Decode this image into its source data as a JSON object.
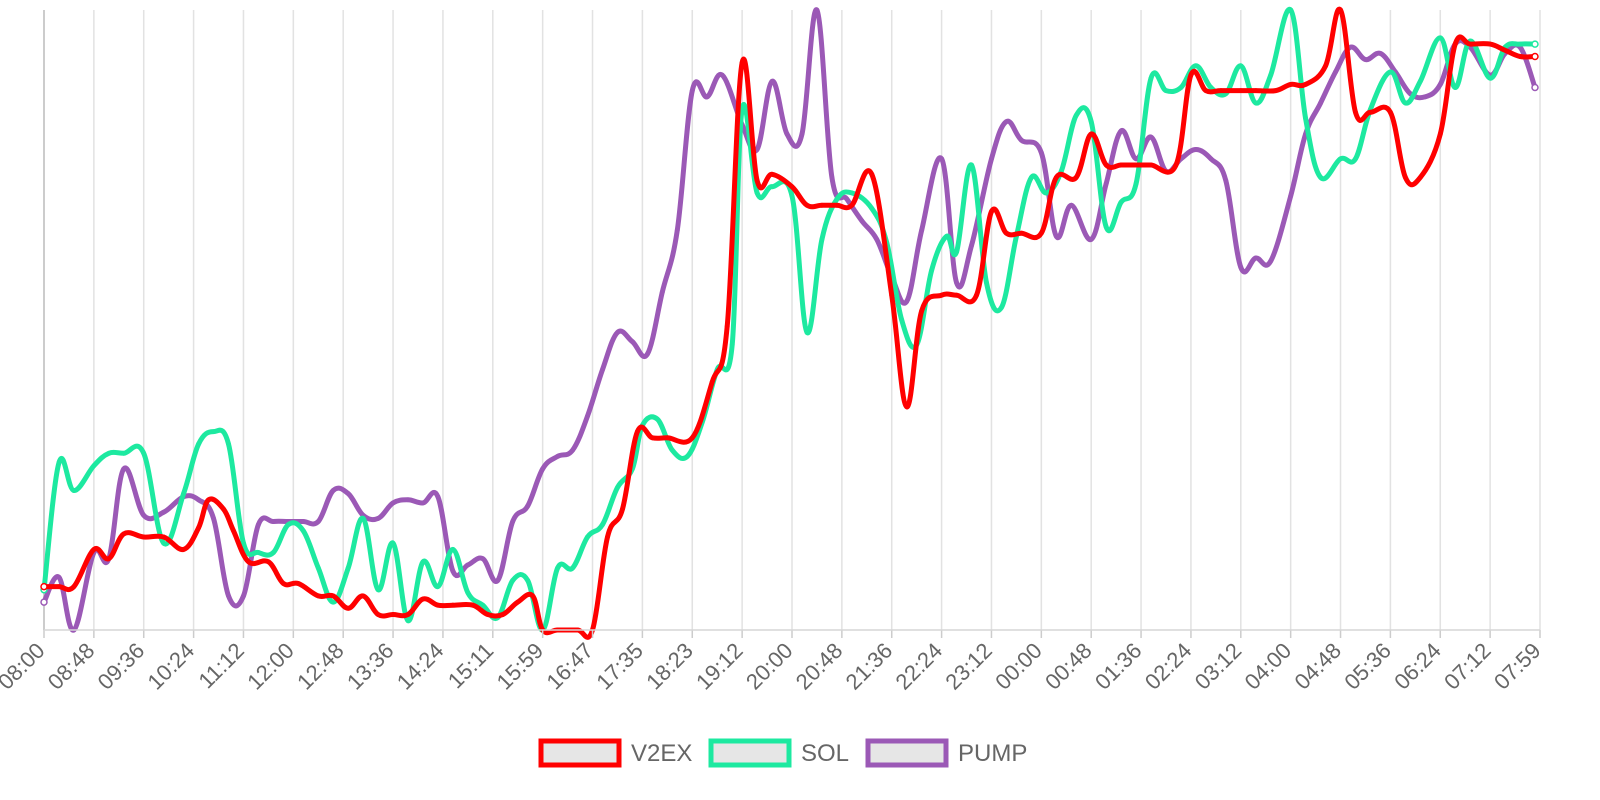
{
  "chart_data": {
    "type": "line",
    "title": "",
    "xlabel": "",
    "ylabel": "",
    "x_tick_labels": [
      "08:00",
      "08:48",
      "09:36",
      "10:24",
      "11:12",
      "12:00",
      "12:48",
      "13:36",
      "14:24",
      "15:11",
      "15:59",
      "16:47",
      "17:35",
      "18:23",
      "19:12",
      "20:00",
      "20:48",
      "21:36",
      "22:24",
      "23:12",
      "00:00",
      "00:48",
      "01:36",
      "02:24",
      "03:12",
      "04:00",
      "04:48",
      "05:36",
      "06:24",
      "07:12",
      "07:59"
    ],
    "y_axis_visible": false,
    "grid": "vertical",
    "legend_position": "bottom",
    "series": [
      {
        "name": "V2EX",
        "color": "#ff0000",
        "points": [
          [
            0,
            7.0
          ],
          [
            0.3,
            7.0
          ],
          [
            0.6,
            7.0
          ],
          [
            1.0,
            13.0
          ],
          [
            1.3,
            11.5
          ],
          [
            1.6,
            15.5
          ],
          [
            2.0,
            15.0
          ],
          [
            2.4,
            15.0
          ],
          [
            2.8,
            13.0
          ],
          [
            3.1,
            16.5
          ],
          [
            3.3,
            21.0
          ],
          [
            3.6,
            19.5
          ],
          [
            3.8,
            16.0
          ],
          [
            4.1,
            11.0
          ],
          [
            4.5,
            11.0
          ],
          [
            4.8,
            7.5
          ],
          [
            5.1,
            7.5
          ],
          [
            5.5,
            5.5
          ],
          [
            5.8,
            5.5
          ],
          [
            6.1,
            3.5
          ],
          [
            6.4,
            5.5
          ],
          [
            6.7,
            2.5
          ],
          [
            7.0,
            2.5
          ],
          [
            7.3,
            2.5
          ],
          [
            7.6,
            5.0
          ],
          [
            7.9,
            4.0
          ],
          [
            8.2,
            4.0
          ],
          [
            8.6,
            4.0
          ],
          [
            8.9,
            2.5
          ],
          [
            9.2,
            2.5
          ],
          [
            9.5,
            4.5
          ],
          [
            9.8,
            5.5
          ],
          [
            10.0,
            0.0
          ],
          [
            10.3,
            0.0
          ],
          [
            10.7,
            0.0
          ],
          [
            11.0,
            0.0
          ],
          [
            11.3,
            15.0
          ],
          [
            11.6,
            19.5
          ],
          [
            11.9,
            32.0
          ],
          [
            12.2,
            31.0
          ],
          [
            12.5,
            31.0
          ],
          [
            13.0,
            31.0
          ],
          [
            13.4,
            40.0
          ],
          [
            13.7,
            49.0
          ],
          [
            14.0,
            91.5
          ],
          [
            14.3,
            72.5
          ],
          [
            14.6,
            73.5
          ],
          [
            15.0,
            71.5
          ],
          [
            15.3,
            68.5
          ],
          [
            15.6,
            68.5
          ],
          [
            15.9,
            68.5
          ],
          [
            16.2,
            68.5
          ],
          [
            16.6,
            73.5
          ],
          [
            17.0,
            54.0
          ],
          [
            17.3,
            36.0
          ],
          [
            17.6,
            51.5
          ],
          [
            18.0,
            54.0
          ],
          [
            18.3,
            54.0
          ],
          [
            18.7,
            54.0
          ],
          [
            19.0,
            67.5
          ],
          [
            19.3,
            64.0
          ],
          [
            19.6,
            64.0
          ],
          [
            20.0,
            64.0
          ],
          [
            20.3,
            73.0
          ],
          [
            20.7,
            73.0
          ],
          [
            21.0,
            80.0
          ],
          [
            21.3,
            75.0
          ],
          [
            21.6,
            75.0
          ],
          [
            21.9,
            75.0
          ],
          [
            22.2,
            75.0
          ],
          [
            22.7,
            75.0
          ],
          [
            23.0,
            89.5
          ],
          [
            23.3,
            87.0
          ],
          [
            23.6,
            87.0
          ],
          [
            24.0,
            87.0
          ],
          [
            24.3,
            87.0
          ],
          [
            24.7,
            87.0
          ],
          [
            25.0,
            88.0
          ],
          [
            25.3,
            88.0
          ],
          [
            25.7,
            91.0
          ],
          [
            26.0,
            100.0
          ],
          [
            26.3,
            83.5
          ],
          [
            26.6,
            83.5
          ],
          [
            27.0,
            83.5
          ],
          [
            27.3,
            73.0
          ],
          [
            27.6,
            73.0
          ],
          [
            28.0,
            80.0
          ],
          [
            28.3,
            94.5
          ],
          [
            28.6,
            94.5
          ],
          [
            29.0,
            94.5
          ],
          [
            29.3,
            93.5
          ],
          [
            29.6,
            92.5
          ],
          [
            29.9,
            92.5
          ]
        ]
      },
      {
        "name": "SOL",
        "color": "#1de9a0",
        "points": [
          [
            0,
            6.5
          ],
          [
            0.3,
            27.0
          ],
          [
            0.6,
            22.5
          ],
          [
            1.0,
            26.5
          ],
          [
            1.3,
            28.5
          ],
          [
            1.6,
            28.5
          ],
          [
            2.0,
            28.5
          ],
          [
            2.4,
            14.0
          ],
          [
            2.8,
            22.0
          ],
          [
            3.1,
            30.0
          ],
          [
            3.4,
            32.0
          ],
          [
            3.7,
            30.0
          ],
          [
            4.0,
            14.0
          ],
          [
            4.3,
            12.5
          ],
          [
            4.6,
            12.5
          ],
          [
            4.9,
            17.0
          ],
          [
            5.2,
            16.0
          ],
          [
            5.5,
            10.0
          ],
          [
            5.8,
            4.5
          ],
          [
            6.1,
            10.0
          ],
          [
            6.4,
            18.0
          ],
          [
            6.7,
            6.5
          ],
          [
            7.0,
            14.0
          ],
          [
            7.3,
            1.5
          ],
          [
            7.6,
            11.0
          ],
          [
            7.9,
            7.0
          ],
          [
            8.2,
            13.0
          ],
          [
            8.5,
            6.0
          ],
          [
            8.8,
            4.0
          ],
          [
            9.1,
            2.0
          ],
          [
            9.4,
            8.0
          ],
          [
            9.7,
            8.0
          ],
          [
            10.0,
            0.0
          ],
          [
            10.3,
            10.0
          ],
          [
            10.6,
            10.0
          ],
          [
            10.9,
            15.0
          ],
          [
            11.2,
            17.0
          ],
          [
            11.5,
            23.0
          ],
          [
            11.8,
            26.0
          ],
          [
            12.0,
            33.0
          ],
          [
            12.3,
            34.0
          ],
          [
            12.6,
            29.0
          ],
          [
            12.9,
            28.0
          ],
          [
            13.2,
            33.5
          ],
          [
            13.5,
            42.0
          ],
          [
            13.8,
            46.0
          ],
          [
            14.0,
            84.0
          ],
          [
            14.3,
            70.5
          ],
          [
            14.6,
            71.5
          ],
          [
            15.0,
            70.0
          ],
          [
            15.3,
            48.0
          ],
          [
            15.6,
            63.0
          ],
          [
            15.9,
            69.5
          ],
          [
            16.2,
            70.5
          ],
          [
            16.6,
            68.0
          ],
          [
            16.9,
            62.5
          ],
          [
            17.2,
            50.0
          ],
          [
            17.5,
            46.0
          ],
          [
            17.8,
            58.0
          ],
          [
            18.1,
            63.5
          ],
          [
            18.3,
            61.0
          ],
          [
            18.6,
            75.0
          ],
          [
            18.9,
            56.0
          ],
          [
            19.2,
            52.0
          ],
          [
            19.5,
            63.5
          ],
          [
            19.8,
            73.0
          ],
          [
            20.1,
            70.5
          ],
          [
            20.4,
            74.0
          ],
          [
            20.7,
            83.0
          ],
          [
            21.0,
            82.0
          ],
          [
            21.3,
            65.0
          ],
          [
            21.6,
            69.0
          ],
          [
            21.9,
            72.0
          ],
          [
            22.2,
            89.0
          ],
          [
            22.5,
            87.0
          ],
          [
            22.8,
            87.5
          ],
          [
            23.1,
            91.0
          ],
          [
            23.4,
            87.5
          ],
          [
            23.7,
            86.5
          ],
          [
            24.0,
            91.0
          ],
          [
            24.3,
            85.0
          ],
          [
            24.6,
            89.5
          ],
          [
            25.0,
            100.0
          ],
          [
            25.3,
            82.5
          ],
          [
            25.6,
            73.0
          ],
          [
            26.0,
            76.0
          ],
          [
            26.3,
            76.0
          ],
          [
            26.6,
            84.0
          ],
          [
            27.0,
            90.0
          ],
          [
            27.3,
            85.0
          ],
          [
            27.6,
            88.5
          ],
          [
            28.0,
            95.5
          ],
          [
            28.3,
            87.5
          ],
          [
            28.6,
            95.0
          ],
          [
            29.0,
            89.0
          ],
          [
            29.3,
            94.0
          ],
          [
            29.6,
            94.5
          ],
          [
            29.9,
            94.5
          ]
        ]
      },
      {
        "name": "PUMP",
        "color": "#9b59b6",
        "points": [
          [
            0,
            4.5
          ],
          [
            0.3,
            8.5
          ],
          [
            0.6,
            0.0
          ],
          [
            1.0,
            12.5
          ],
          [
            1.3,
            11.5
          ],
          [
            1.6,
            26.0
          ],
          [
            2.0,
            18.5
          ],
          [
            2.4,
            19.0
          ],
          [
            2.8,
            21.5
          ],
          [
            3.1,
            21.0
          ],
          [
            3.4,
            18.0
          ],
          [
            3.7,
            5.5
          ],
          [
            4.0,
            5.5
          ],
          [
            4.3,
            17.0
          ],
          [
            4.6,
            17.5
          ],
          [
            4.9,
            17.5
          ],
          [
            5.2,
            17.5
          ],
          [
            5.5,
            17.5
          ],
          [
            5.8,
            22.5
          ],
          [
            6.1,
            22.0
          ],
          [
            6.4,
            18.5
          ],
          [
            6.7,
            18.0
          ],
          [
            7.0,
            20.5
          ],
          [
            7.3,
            21.0
          ],
          [
            7.6,
            20.5
          ],
          [
            7.9,
            21.5
          ],
          [
            8.2,
            9.5
          ],
          [
            8.5,
            10.5
          ],
          [
            8.8,
            11.5
          ],
          [
            9.1,
            8.0
          ],
          [
            9.4,
            17.5
          ],
          [
            9.7,
            20.0
          ],
          [
            10.0,
            26.0
          ],
          [
            10.3,
            28.0
          ],
          [
            10.6,
            29.0
          ],
          [
            10.9,
            34.5
          ],
          [
            11.2,
            42.0
          ],
          [
            11.5,
            48.0
          ],
          [
            11.8,
            46.5
          ],
          [
            12.1,
            44.5
          ],
          [
            12.4,
            54.5
          ],
          [
            12.7,
            64.5
          ],
          [
            13.0,
            87.0
          ],
          [
            13.3,
            86.0
          ],
          [
            13.6,
            89.5
          ],
          [
            14.0,
            81.5
          ],
          [
            14.3,
            77.5
          ],
          [
            14.6,
            88.5
          ],
          [
            14.9,
            80.0
          ],
          [
            15.2,
            80.0
          ],
          [
            15.5,
            100.0
          ],
          [
            15.8,
            73.0
          ],
          [
            16.1,
            69.5
          ],
          [
            16.4,
            66.0
          ],
          [
            16.7,
            63.0
          ],
          [
            17.0,
            57.0
          ],
          [
            17.3,
            53.0
          ],
          [
            17.6,
            64.5
          ],
          [
            18.0,
            76.0
          ],
          [
            18.3,
            56.0
          ],
          [
            18.6,
            62.0
          ],
          [
            19.0,
            76.0
          ],
          [
            19.3,
            82.0
          ],
          [
            19.6,
            79.0
          ],
          [
            20.0,
            77.0
          ],
          [
            20.3,
            63.5
          ],
          [
            20.6,
            68.5
          ],
          [
            21.0,
            63.0
          ],
          [
            21.3,
            72.0
          ],
          [
            21.6,
            80.5
          ],
          [
            21.9,
            76.0
          ],
          [
            22.2,
            79.5
          ],
          [
            22.5,
            74.0
          ],
          [
            22.8,
            76.0
          ],
          [
            23.1,
            77.5
          ],
          [
            23.4,
            76.0
          ],
          [
            23.7,
            72.5
          ],
          [
            24.0,
            58.5
          ],
          [
            24.3,
            60.0
          ],
          [
            24.6,
            59.5
          ],
          [
            25.0,
            70.0
          ],
          [
            25.3,
            80.0
          ],
          [
            25.6,
            85.0
          ],
          [
            25.9,
            90.0
          ],
          [
            26.2,
            94.0
          ],
          [
            26.5,
            92.0
          ],
          [
            26.8,
            93.0
          ],
          [
            27.1,
            90.0
          ],
          [
            27.4,
            86.5
          ],
          [
            27.7,
            86.0
          ],
          [
            28.0,
            88.0
          ],
          [
            28.3,
            94.5
          ],
          [
            28.6,
            94.0
          ],
          [
            29.0,
            89.5
          ],
          [
            29.3,
            93.0
          ],
          [
            29.6,
            94.0
          ],
          [
            29.9,
            87.5
          ]
        ]
      }
    ]
  }
}
